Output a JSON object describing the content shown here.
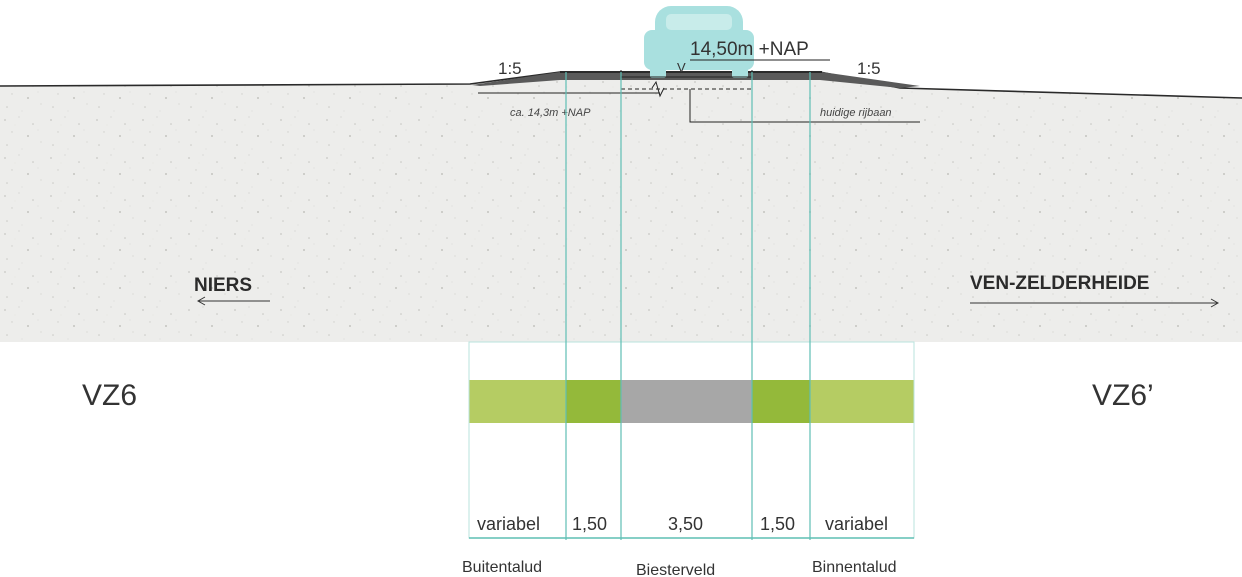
{
  "top_labels": {
    "elevation": "14,50m +NAP",
    "slope_left": "1:5",
    "slope_right": "1:5",
    "level_marker": "V",
    "level_left": "ca. 14,3m +NAP",
    "level_right": "huidige rijbaan"
  },
  "directions": {
    "left": "NIERS",
    "right": "VEN-ZELDERHEIDE"
  },
  "profile_codes": {
    "left": "VZ6",
    "right": "VZ6’"
  },
  "widths": [
    "variabel",
    "1,50",
    "3,50",
    "1,50",
    "variabel"
  ],
  "zones": [
    "Buitentalud",
    "Biesterveld",
    "Binnentalud"
  ],
  "colors": {
    "light_green": "#b5cc63",
    "dark_green": "#94b93a",
    "road_grey": "#a7a7a7",
    "guide_teal": "#5fbfb4",
    "car_teal": "#a9e0df",
    "soil": "#ececea"
  },
  "icons": {
    "car": "car-rear-icon"
  }
}
